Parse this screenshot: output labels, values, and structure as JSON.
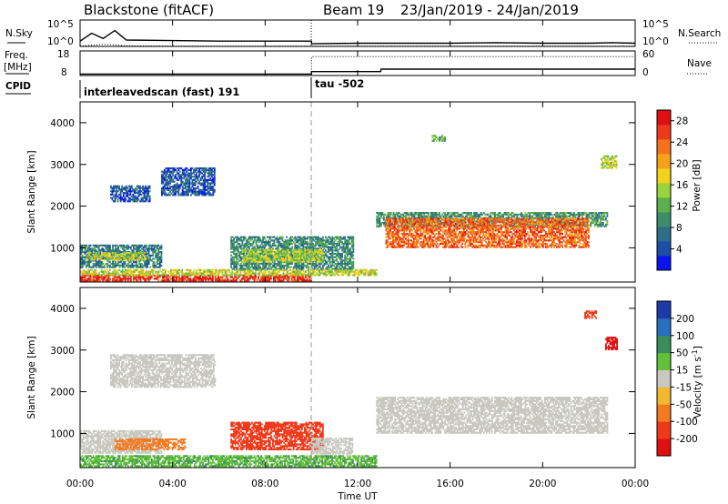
{
  "header": {
    "station": "Blackstone (fitACF)",
    "beam": "Beam 19",
    "dates": "23/Jan/2019 - 24/Jan/2019"
  },
  "nsky_panel": {
    "left_label": "N.Sky",
    "right_label": "N.Search",
    "left_ticks": [
      "10^5",
      "10^0"
    ],
    "right_ticks": [
      "10^5",
      "10^0"
    ]
  },
  "freq_panel": {
    "left_label_1": "Freq.",
    "left_label_2": "[MHz]",
    "left_ticks": [
      "18",
      "8"
    ],
    "right_label": "Nave",
    "right_ticks": [
      "60",
      "0"
    ]
  },
  "cpid_panel": {
    "label": "CPID",
    "program_1": "interleavedscan (fast) 191",
    "program_2": "tau -502",
    "switch_time_h": 10.0
  },
  "time_axis": {
    "label": "Time UT",
    "ticks": [
      "00:00",
      "04:00",
      "08:00",
      "12:00",
      "16:00",
      "20:00",
      "00:00"
    ],
    "range_h": [
      0,
      24
    ]
  },
  "colors": {
    "power": [
      "#0a14f0",
      "#1c4ea8",
      "#2f6e8a",
      "#3c8e6a",
      "#5bb04e",
      "#9ad23c",
      "#f2d21e",
      "#f6a218",
      "#f4721e",
      "#ee3a1a",
      "#e01010"
    ],
    "velocity": [
      "#1e3aa8",
      "#2a6ec0",
      "#3a8e5a",
      "#63c03a",
      "#c8c8c0",
      "#f2b830",
      "#f47a22",
      "#ee3a1a",
      "#e01010"
    ]
  },
  "chart_data": [
    {
      "type": "line",
      "title": "N.Sky / N.Search",
      "x": [
        0,
        0.5,
        1,
        1.5,
        2,
        4,
        6,
        8,
        10,
        10.01,
        12,
        14,
        16,
        18,
        20,
        22,
        23,
        24
      ],
      "series": [
        {
          "name": "N.Sky",
          "values": [
            1,
            2.5,
            1.5,
            3,
            1.2,
            1.1,
            1.0,
            1.0,
            1.0,
            0.5,
            0.6,
            0.6,
            0.6,
            0.7,
            0.6,
            0.6,
            0.7,
            0.6
          ]
        },
        {
          "name": "N.Search",
          "values": [
            0.1,
            0.2,
            0.4,
            0.3,
            0.1,
            0.05,
            0.05,
            0.05,
            0.05,
            0.05,
            0.05,
            0.05,
            0.05,
            0.05,
            0.05,
            0.05,
            0.05,
            0.05
          ]
        }
      ],
      "scale": "log",
      "ylim": [
        0,
        5
      ]
    },
    {
      "type": "line",
      "title": "Freq. / Nave",
      "series": [
        {
          "name": "Freq. [MHz]",
          "x": [
            0,
            10,
            10.01,
            13,
            13.01,
            24
          ],
          "values": [
            8.6,
            8.6,
            9.6,
            9.6,
            10.6,
            10.6
          ]
        },
        {
          "name": "Nave",
          "x": [
            0,
            10,
            10.01,
            24
          ],
          "values": [
            0,
            0,
            46,
            46
          ]
        }
      ],
      "ylim_freq": [
        8,
        18
      ],
      "ylim_nave": [
        0,
        60
      ]
    },
    {
      "type": "heatmap",
      "title": "Power",
      "xlabel": "Time UT",
      "ylabel": "Slant Range [km]",
      "colorbar_label": "Power [dB]",
      "xlim": [
        0,
        24
      ],
      "ylim": [
        180,
        4500
      ],
      "y_ticks": [
        1000,
        2000,
        3000,
        4000
      ],
      "colorbar_ticks": [
        4,
        8,
        12,
        16,
        20,
        24,
        28
      ],
      "colorbar_range": [
        0,
        30
      ],
      "regions": [
        {
          "t0": 0.0,
          "t1": 10.0,
          "r0": 200,
          "r1": 330,
          "value": 27
        },
        {
          "t0": 0.0,
          "t1": 12.8,
          "r0": 330,
          "r1": 480,
          "value": 16
        },
        {
          "t0": 0.0,
          "t1": 3.5,
          "r0": 520,
          "r1": 1050,
          "value": 8
        },
        {
          "t0": 0.3,
          "t1": 2.8,
          "r0": 700,
          "r1": 900,
          "value": 16
        },
        {
          "t0": 6.5,
          "t1": 11.8,
          "r0": 480,
          "r1": 1250,
          "value": 9
        },
        {
          "t0": 7.0,
          "t1": 10.5,
          "r0": 650,
          "r1": 950,
          "value": 15
        },
        {
          "t0": 1.3,
          "t1": 3.0,
          "r0": 2100,
          "r1": 2500,
          "value": 5
        },
        {
          "t0": 3.5,
          "t1": 5.8,
          "r0": 2250,
          "r1": 2900,
          "value": 5
        },
        {
          "t0": 12.8,
          "t1": 22.8,
          "r0": 1500,
          "r1": 1850,
          "value": 10
        },
        {
          "t0": 13.2,
          "t1": 22.0,
          "r0": 1000,
          "r1": 1700,
          "value": 24
        },
        {
          "t0": 22.5,
          "t1": 23.2,
          "r0": 2900,
          "r1": 3200,
          "value": 16
        },
        {
          "t0": 15.2,
          "t1": 15.8,
          "r0": 3550,
          "r1": 3700,
          "value": 12
        }
      ]
    },
    {
      "type": "heatmap",
      "title": "Velocity",
      "xlabel": "Time UT",
      "ylabel": "Slant Range [km]",
      "colorbar_label": "Velocity [m s^-1]",
      "xlim": [
        0,
        24
      ],
      "ylim": [
        180,
        4500
      ],
      "y_ticks": [
        1000,
        2000,
        3000,
        4000
      ],
      "colorbar_ticks": [
        "200",
        "100",
        "50",
        "15",
        "-15",
        "-50",
        "-100",
        "-200"
      ],
      "regions": [
        {
          "t0": 0.0,
          "t1": 12.8,
          "r0": 200,
          "r1": 480,
          "value": 30
        },
        {
          "t0": 0.0,
          "t1": 3.5,
          "r0": 520,
          "r1": 1050,
          "value": 0
        },
        {
          "t0": 1.5,
          "t1": 4.5,
          "r0": 600,
          "r1": 850,
          "value": -40
        },
        {
          "t0": 6.5,
          "t1": 10.5,
          "r0": 600,
          "r1": 1250,
          "value": -90
        },
        {
          "t0": 10.0,
          "t1": 11.8,
          "r0": 500,
          "r1": 900,
          "value": 0
        },
        {
          "t0": 1.3,
          "t1": 5.8,
          "r0": 2100,
          "r1": 2900,
          "value": 0
        },
        {
          "t0": 12.8,
          "t1": 22.8,
          "r0": 1000,
          "r1": 1850,
          "value": 0
        },
        {
          "t0": 22.7,
          "t1": 23.2,
          "r0": 3000,
          "r1": 3300,
          "value": -180
        },
        {
          "t0": 21.8,
          "t1": 22.3,
          "r0": 3750,
          "r1": 3950,
          "value": -120
        }
      ]
    }
  ]
}
